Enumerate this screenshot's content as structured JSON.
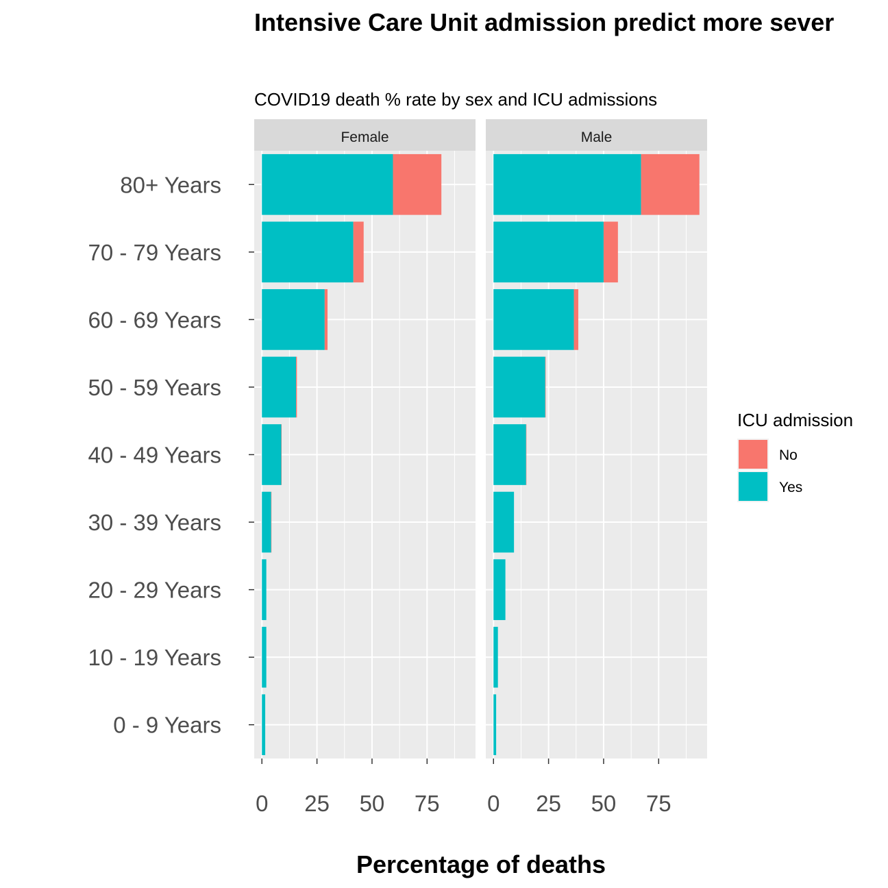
{
  "chart_data": {
    "type": "bar",
    "orientation": "horizontal",
    "stacked": true,
    "title": "Intensive Care Unit admission predict more sever",
    "subtitle": "COVID19 death % rate by sex and ICU admissions",
    "xlabel": "Percentage of deaths",
    "ylabel": "",
    "xlim": [
      -3.5,
      97
    ],
    "xticks": [
      0,
      25,
      50,
      75
    ],
    "xtick_labels": [
      "0",
      "25",
      "50",
      "75"
    ],
    "categories": [
      "80+ Years",
      "70 - 79 Years",
      "60 - 69 Years",
      "50 - 59 Years",
      "40 - 49 Years",
      "30 - 39 Years",
      "20 - 29 Years",
      "10 - 19 Years",
      "0 - 9 Years"
    ],
    "grid": true,
    "legend": {
      "title": "ICU admission",
      "position": "right",
      "entries": [
        {
          "label": "No",
          "color": "#F8766D"
        },
        {
          "label": "Yes",
          "color": "#00BFC4"
        }
      ]
    },
    "panels": [
      {
        "name": "Female",
        "series": [
          {
            "name": "Yes",
            "color": "#00BFC4",
            "values": [
              59.5,
              41.5,
              28.5,
              15.5,
              8.8,
              4.2,
              2.0,
              2.0,
              1.5
            ]
          },
          {
            "name": "No",
            "color": "#F8766D",
            "values": [
              22.0,
              4.7,
              1.3,
              0.4,
              0.1,
              0.1,
              0.0,
              0.0,
              0.0
            ]
          }
        ]
      },
      {
        "name": "Male",
        "series": [
          {
            "name": "Yes",
            "color": "#00BFC4",
            "values": [
              67.0,
              50.0,
              36.5,
              23.5,
              14.8,
              9.3,
              5.4,
              2.0,
              1.2
            ]
          },
          {
            "name": "No",
            "color": "#F8766D",
            "values": [
              26.5,
              6.5,
              2.0,
              0.2,
              0.1,
              0.0,
              0.0,
              0.0,
              0.0
            ]
          }
        ]
      }
    ]
  }
}
